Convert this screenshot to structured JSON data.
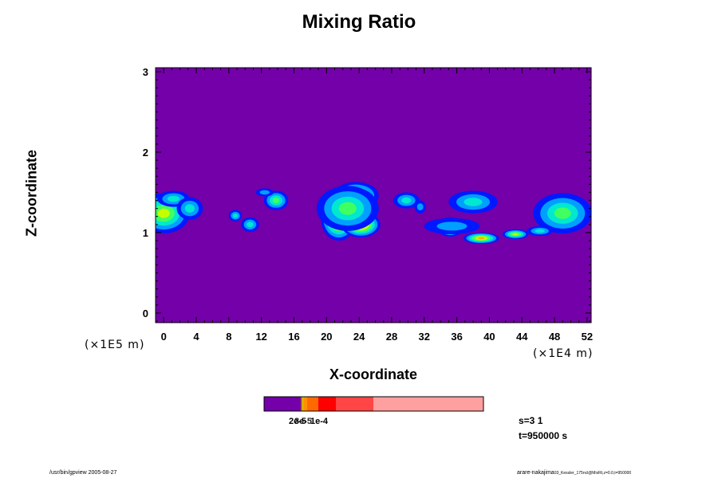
{
  "chart_data": {
    "type": "heatmap",
    "title": "Mixing Ratio",
    "xlabel": "X-coordinate",
    "ylabel": "Z-coordinate",
    "x_scale_label": "(×1E4 m)",
    "z_scale_label": "(×1E5 m)",
    "x_ticks": [
      "0",
      "4",
      "8",
      "12",
      "16",
      "20",
      "24",
      "28",
      "32",
      "36",
      "40",
      "44",
      "48",
      "52"
    ],
    "y_ticks": [
      "0",
      "1",
      "2",
      "3"
    ],
    "xlim": [
      -1,
      52.5
    ],
    "ylim": [
      -0.12,
      3.05
    ],
    "colorbar": {
      "labels": [
        "2e-5",
        "3e-5",
        "1e-4"
      ],
      "levels": [
        "#7300a8",
        "#ffd000",
        "#ff9000",
        "#ff6a00",
        "#ff0000",
        "#ff4545",
        "#ffa0a0"
      ]
    },
    "cloud_features": [
      {
        "x": 0,
        "z": 1.24,
        "rx": 3.2,
        "rz": 0.25,
        "peak": 4
      },
      {
        "x": 1.2,
        "z": 1.42,
        "rx": 2.0,
        "rz": 0.1,
        "peak": 2
      },
      {
        "x": 3.2,
        "z": 1.3,
        "rx": 1.6,
        "rz": 0.14,
        "peak": 2
      },
      {
        "x": 8.8,
        "z": 1.21,
        "rx": 0.8,
        "rz": 0.07,
        "peak": 2
      },
      {
        "x": 10.6,
        "z": 1.1,
        "rx": 1.1,
        "rz": 0.09,
        "peak": 2
      },
      {
        "x": 13.8,
        "z": 1.4,
        "rx": 1.5,
        "rz": 0.12,
        "peak": 3
      },
      {
        "x": 12.4,
        "z": 1.5,
        "rx": 1.1,
        "rz": 0.05,
        "peak": 1
      },
      {
        "x": 21.5,
        "z": 1.18,
        "rx": 2.2,
        "rz": 0.28,
        "peak": 6
      },
      {
        "x": 24.2,
        "z": 1.1,
        "rx": 2.4,
        "rz": 0.16,
        "peak": 6
      },
      {
        "x": 23.6,
        "z": 1.46,
        "rx": 2.8,
        "rz": 0.17,
        "peak": 4
      },
      {
        "x": 22.6,
        "z": 1.3,
        "rx": 3.8,
        "rz": 0.28,
        "peak": 3
      },
      {
        "x": 29.8,
        "z": 1.4,
        "rx": 1.6,
        "rz": 0.1,
        "peak": 2
      },
      {
        "x": 31.5,
        "z": 1.32,
        "rx": 0.7,
        "rz": 0.08,
        "peak": 1
      },
      {
        "x": 35.2,
        "z": 1.07,
        "rx": 1.6,
        "rz": 0.12,
        "peak": 5
      },
      {
        "x": 39.0,
        "z": 0.93,
        "rx": 2.2,
        "rz": 0.07,
        "peak": 5
      },
      {
        "x": 43.2,
        "z": 0.98,
        "rx": 1.6,
        "rz": 0.06,
        "peak": 4
      },
      {
        "x": 38.0,
        "z": 1.38,
        "rx": 3.0,
        "rz": 0.14,
        "peak": 2
      },
      {
        "x": 35.4,
        "z": 1.08,
        "rx": 3.4,
        "rz": 0.1,
        "peak": 1
      },
      {
        "x": 49.0,
        "z": 1.24,
        "rx": 3.6,
        "rz": 0.25,
        "peak": 3
      },
      {
        "x": 46.2,
        "z": 1.02,
        "rx": 1.6,
        "rz": 0.06,
        "peak": 2
      }
    ]
  },
  "info": {
    "step": "s=3 1",
    "time": "t=950000 s"
  },
  "footer": {
    "left": "/usr/bin/gpview 2005-08-27",
    "right": "arare-nakajima",
    "right_small": "03_Kessler_175ncl@MixRt,z=0.0,t=950000"
  }
}
